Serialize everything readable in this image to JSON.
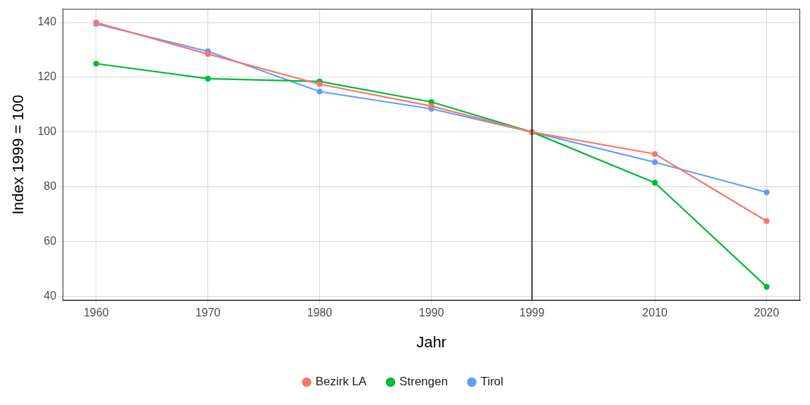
{
  "chart_data": {
    "type": "line",
    "x": [
      1960,
      1970,
      1980,
      1990,
      1999,
      2010,
      2020
    ],
    "series": [
      {
        "name": "Bezirk LA",
        "color": "#F8766D",
        "values": [
          140,
          128.5,
          117.5,
          109.5,
          100,
          92,
          67.5
        ]
      },
      {
        "name": "Strengen",
        "color": "#00BA38",
        "values": [
          125,
          119.5,
          118.5,
          111,
          100,
          81.5,
          43.5
        ]
      },
      {
        "name": "Tirol",
        "color": "#619CFF",
        "values": [
          139.5,
          129.5,
          114.8,
          108.5,
          100,
          89,
          78
        ]
      }
    ],
    "xlabel": "Jahr",
    "ylabel": "Index 1999 = 100",
    "xlim": [
      1957,
      2023
    ],
    "xticks": [
      1960,
      1970,
      1980,
      1990,
      1999,
      2010,
      2020
    ],
    "ylim": [
      38.5,
      145
    ],
    "yticks": [
      40,
      60,
      80,
      100,
      120,
      140
    ],
    "grid": true,
    "legend": "bottom",
    "marker": "circle",
    "reference_line_x": 1999
  }
}
